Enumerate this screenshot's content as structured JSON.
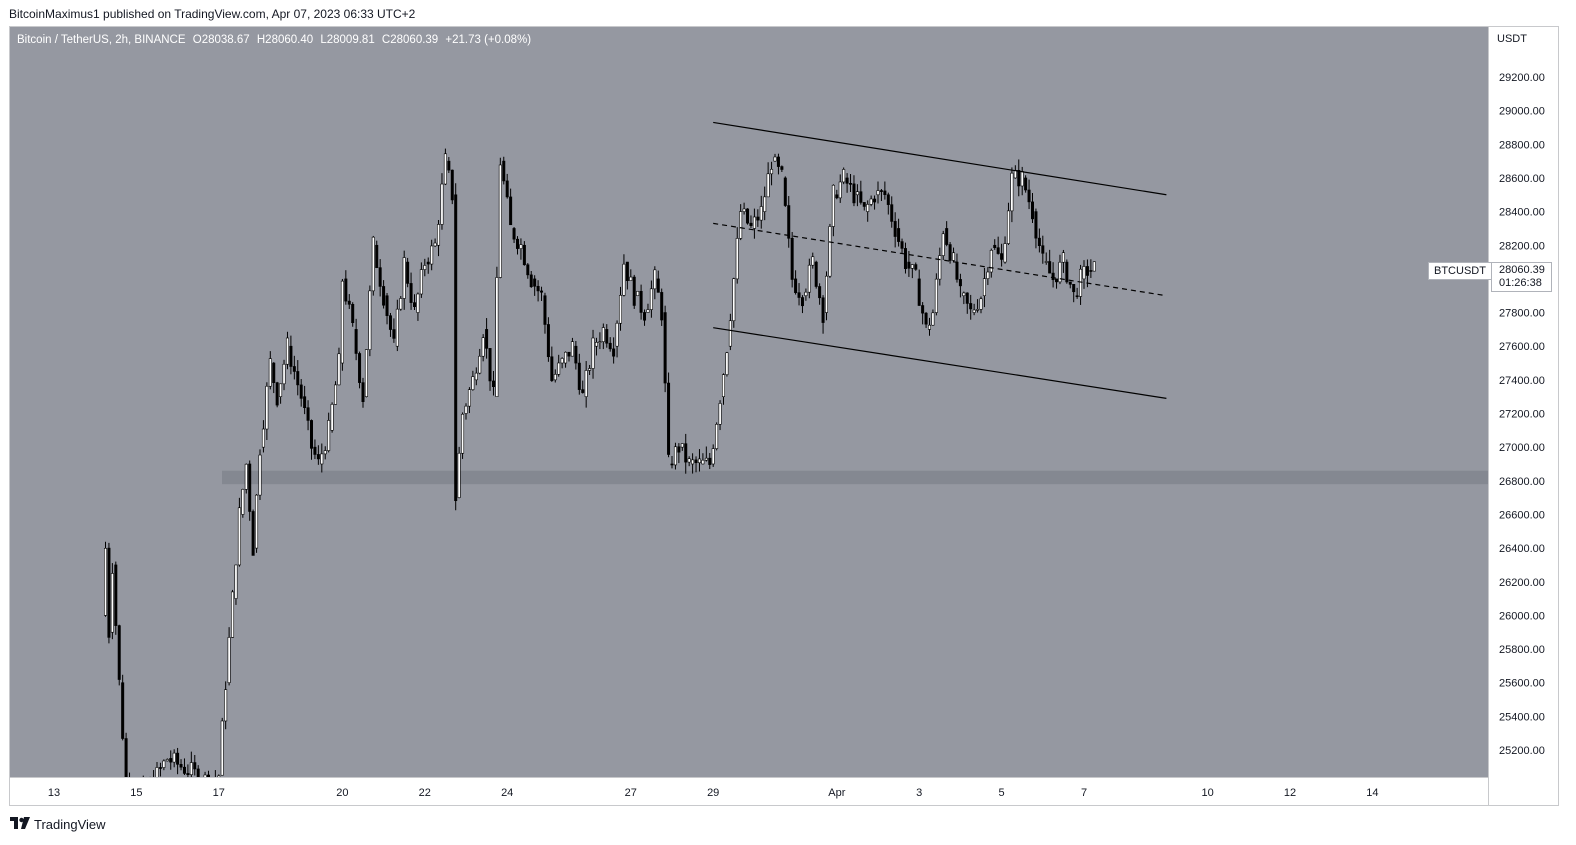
{
  "publish_line": "BitcoinMaximus1 published on TradingView.com, Apr 07, 2023 06:33 UTC+2",
  "header": {
    "symbol": "Bitcoin / TetherUS, 2h, BINANCE",
    "open_key": "O",
    "open": "28038.67",
    "high_key": "H",
    "high": "28060.40",
    "low_key": "L",
    "low": "28009.81",
    "close_key": "C",
    "close": "28060.39",
    "change": "+21.73 (+0.08%)"
  },
  "price_axis": {
    "currency": "USDT",
    "ticker": "BTCUSDT",
    "last_price": "28060.39",
    "countdown": "01:26:38"
  },
  "brand": {
    "name": "TradingView"
  },
  "colors": {
    "background": "#9598a1",
    "candle": "#000000",
    "support_zone": "#7e818a"
  },
  "chart_data": {
    "type": "candlestick",
    "title": "",
    "xlabel": "",
    "ylabel": "",
    "ylim": [
      24900,
      29400
    ],
    "x_ticks": [
      "13",
      "15",
      "17",
      "20",
      "22",
      "24",
      "27",
      "29",
      "Apr",
      "3",
      "5",
      "7",
      "10",
      "12",
      "14"
    ],
    "y_ticks": [
      25200,
      25400,
      25600,
      25800,
      26000,
      26200,
      26400,
      26600,
      26800,
      27000,
      27200,
      27400,
      27600,
      27800,
      28000,
      28200,
      28400,
      28600,
      28800,
      29000,
      29200
    ],
    "support_zone": [
      26780,
      26860
    ],
    "channel": {
      "upper": {
        "from": [
          "Mar 29",
          28930
        ],
        "to": [
          "Apr 9",
          28500
        ]
      },
      "middle": {
        "from": [
          "Mar 29",
          28330
        ],
        "to": [
          "Apr 9",
          27900
        ]
      },
      "lower": {
        "from": [
          "Mar 29",
          27710
        ],
        "to": [
          "Apr 9",
          27290
        ]
      }
    },
    "ohlc_path": [
      [
        "Mar 14 04:00",
        26000
      ],
      [
        "Mar 14 06:00",
        26400
      ],
      [
        "Mar 14 08:00",
        25900
      ],
      [
        "Mar 14 10:00",
        26300
      ],
      [
        "Mar 14 14:00",
        25600
      ],
      [
        "Mar 14 18:00",
        25000
      ],
      [
        "Mar 15 06:00",
        24950
      ],
      [
        "Mar 15 18:00",
        25150
      ],
      [
        "Mar 16 20:00",
        25000
      ],
      [
        "Mar 17 00:00",
        25050
      ],
      [
        "Mar 17 04:00",
        25600
      ],
      [
        "Mar 17 08:00",
        26100
      ],
      [
        "Mar 17 12:00",
        26600
      ],
      [
        "Mar 17 16:00",
        26900
      ],
      [
        "Mar 17 20:00",
        26400
      ],
      [
        "Mar 18 00:00",
        27000
      ],
      [
        "Mar 18 06:00",
        27500
      ],
      [
        "Mar 18 10:00",
        27300
      ],
      [
        "Mar 18 16:00",
        27600
      ],
      [
        "Mar 19 00:00",
        27300
      ],
      [
        "Mar 19 06:00",
        27000
      ],
      [
        "Mar 19 10:00",
        26900
      ],
      [
        "Mar 19 16:00",
        27100
      ],
      [
        "Mar 19 22:00",
        27500
      ],
      [
        "Mar 20 00:00",
        28000
      ],
      [
        "Mar 20 06:00",
        27700
      ],
      [
        "Mar 20 12:00",
        27300
      ],
      [
        "Mar 20 18:00",
        28200
      ],
      [
        "Mar 21 00:00",
        27900
      ],
      [
        "Mar 21 06:00",
        27600
      ],
      [
        "Mar 21 12:00",
        28100
      ],
      [
        "Mar 21 18:00",
        27800
      ],
      [
        "Mar 22 00:00",
        28100
      ],
      [
        "Mar 22 06:00",
        28200
      ],
      [
        "Mar 22 12:00",
        28700
      ],
      [
        "Mar 22 16:00",
        28500
      ],
      [
        "Mar 22 18:00",
        26700
      ],
      [
        "Mar 22 22:00",
        27200
      ],
      [
        "Mar 23 04:00",
        27400
      ],
      [
        "Mar 23 10:00",
        27700
      ],
      [
        "Mar 23 16:00",
        27300
      ],
      [
        "Mar 23 20:00",
        28700
      ],
      [
        "Mar 24 02:00",
        28300
      ],
      [
        "Mar 24 08:00",
        28200
      ],
      [
        "Mar 24 14:00",
        28000
      ],
      [
        "Mar 24 20:00",
        27900
      ],
      [
        "Mar 25 02:00",
        27400
      ],
      [
        "Mar 25 08:00",
        27500
      ],
      [
        "Mar 25 14:00",
        27600
      ],
      [
        "Mar 25 20:00",
        27300
      ],
      [
        "Mar 26 02:00",
        27600
      ],
      [
        "Mar 26 08:00",
        27700
      ],
      [
        "Mar 26 14:00",
        27600
      ],
      [
        "Mar 26 20:00",
        28100
      ],
      [
        "Mar 27 02:00",
        27900
      ],
      [
        "Mar 27 08:00",
        27800
      ],
      [
        "Mar 27 14:00",
        28000
      ],
      [
        "Mar 27 18:00",
        27800
      ],
      [
        "Mar 27 22:00",
        26900
      ],
      [
        "Mar 28 04:00",
        27000
      ],
      [
        "Mar 28 10:00",
        26900
      ],
      [
        "Mar 28 16:00",
        26900
      ],
      [
        "Mar 28 22:00",
        26900
      ],
      [
        "Mar 29 04:00",
        27300
      ],
      [
        "Mar 29 08:00",
        27600
      ],
      [
        "Mar 29 12:00",
        28000
      ],
      [
        "Mar 29 16:00",
        28400
      ],
      [
        "Mar 29 22:00",
        28300
      ],
      [
        "Mar 30 04:00",
        28400
      ],
      [
        "Mar 30 10:00",
        28700
      ],
      [
        "Mar 30 16:00",
        28600
      ],
      [
        "Mar 30 22:00",
        28000
      ],
      [
        "Mar 31 04:00",
        27900
      ],
      [
        "Mar 31 10:00",
        28100
      ],
      [
        "Mar 31 16:00",
        27800
      ],
      [
        "Mar 31 22:00",
        28500
      ],
      [
        "Apr 1 04:00",
        28600
      ],
      [
        "Apr 1 10:00",
        28500
      ],
      [
        "Apr 1 16:00",
        28400
      ],
      [
        "Apr 1 22:00",
        28500
      ],
      [
        "Apr 2 04:00",
        28500
      ],
      [
        "Apr 2 10:00",
        28300
      ],
      [
        "Apr 2 16:00",
        28100
      ],
      [
        "Apr 2 22:00",
        28000
      ],
      [
        "Apr 3 04:00",
        27700
      ],
      [
        "Apr 3 08:00",
        27800
      ],
      [
        "Apr 3 14:00",
        28300
      ],
      [
        "Apr 3 20:00",
        28100
      ],
      [
        "Apr 4 00:00",
        27900
      ],
      [
        "Apr 4 06:00",
        27800
      ],
      [
        "Apr 4 12:00",
        27900
      ],
      [
        "Apr 4 18:00",
        28200
      ],
      [
        "Apr 5 00:00",
        28100
      ],
      [
        "Apr 5 06:00",
        28600
      ],
      [
        "Apr 5 12:00",
        28600
      ],
      [
        "Apr 5 18:00",
        28400
      ],
      [
        "Apr 6 00:00",
        28100
      ],
      [
        "Apr 6 06:00",
        28000
      ],
      [
        "Apr 6 12:00",
        28100
      ],
      [
        "Apr 6 18:00",
        27900
      ],
      [
        "Apr 6 22:00",
        28000
      ],
      [
        "Apr 7 02:00",
        28050
      ],
      [
        "Apr 7 06:00",
        28060
      ]
    ]
  }
}
